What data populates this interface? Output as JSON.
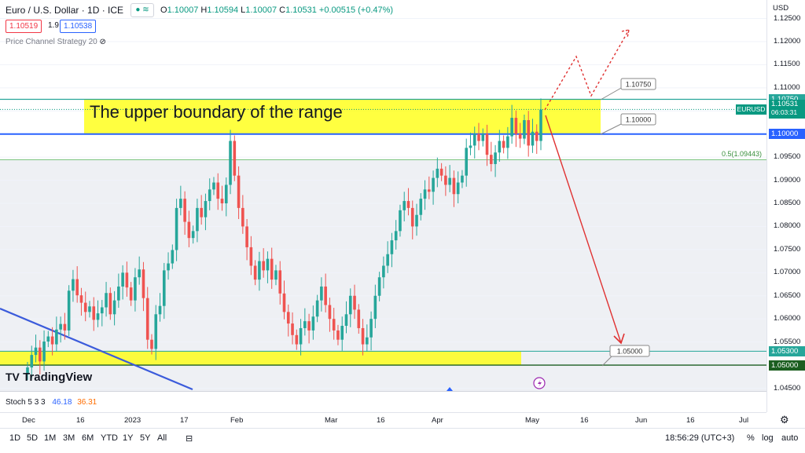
{
  "header": {
    "symbol": "Euro / U.S. Dollar · 1D · ICE",
    "open_label": "O",
    "open": "1.10007",
    "high_label": "H",
    "high": "1.10594",
    "low_label": "L",
    "low": "1.10007",
    "close_label": "C",
    "close": "1.10531",
    "change": "+0.00515 (+0.47%)",
    "bid": "1.10519",
    "spread": "1.9",
    "ask": "1.10538",
    "strategy": "Price Channel Strategy 20"
  },
  "price_axis": {
    "currency": "USD",
    "ticks": [
      "1.12500",
      "1.12000",
      "1.11500",
      "1.11000",
      "1.10500",
      "1.10000",
      "1.09500",
      "1.09000",
      "1.08500",
      "1.08000",
      "1.07500",
      "1.07000",
      "1.06500",
      "1.06000",
      "1.05500",
      "1.05000",
      "1.04500"
    ],
    "labels": {
      "upper": "1.10750",
      "symbol": "EURUSD",
      "last": "1.10531",
      "countdown": "06:03:31",
      "boundary": "1.10000",
      "lower_top": "1.05300",
      "lower": "1.05000"
    }
  },
  "annotations": {
    "range_text": "The upper boundary of the range",
    "callout_upper": "1.10750",
    "callout_boundary": "1.10000",
    "callout_lower": "1.05000",
    "fib": "0.5(1.09443)"
  },
  "stoch": {
    "label": "Stoch 5 3 3",
    "k": "46.18",
    "d": "36.31"
  },
  "time_axis": [
    "Dec",
    "16",
    "2023",
    "17",
    "Feb",
    "Mar",
    "16",
    "Apr",
    "May",
    "16",
    "Jun",
    "16",
    "Jul"
  ],
  "toolbar": {
    "ranges": [
      "1D",
      "5D",
      "1M",
      "3M",
      "6M",
      "YTD",
      "1Y",
      "5Y",
      "All"
    ],
    "clock": "18:56:29 (UTC+3)",
    "percent": "%",
    "log": "log",
    "auto": "auto"
  },
  "brand": "TradingView",
  "colors": {
    "up": "#26a69a",
    "down": "#ef5350",
    "zone": "#ffff00",
    "level": "#2962ff"
  },
  "chart_data": {
    "type": "candlestick",
    "title": "Euro / U.S. Dollar · 1D · ICE",
    "ylim": [
      1.043,
      1.128
    ],
    "x_axis": [
      "Dec",
      "16",
      "2023",
      "17",
      "Feb",
      "Mar",
      "16",
      "Apr",
      "May",
      "16",
      "Jun",
      "16",
      "Jul"
    ],
    "levels": {
      "range_top": 1.1075,
      "range_bottom": 1.1,
      "fib_0_5": 1.09443,
      "support_top": 1.053,
      "support_bottom": 1.05
    },
    "closes": [
      1.0495,
      1.0522,
      1.0538,
      1.0508,
      1.0551,
      1.0562,
      1.0545,
      1.0577,
      1.0589,
      1.0575,
      1.0661,
      1.0686,
      1.0651,
      1.0635,
      1.0615,
      1.0627,
      1.0598,
      1.0612,
      1.0625,
      1.0656,
      1.061,
      1.064,
      1.067,
      1.07,
      1.0668,
      1.064,
      1.069,
      1.0707,
      1.0645,
      1.0555,
      1.0535,
      1.061,
      1.0628,
      1.0705,
      1.072,
      1.0749,
      1.084,
      1.086,
      1.081,
      1.0775,
      1.079,
      1.084,
      1.082,
      1.0855,
      1.088,
      1.0895,
      1.086,
      1.085,
      1.089,
      1.0985,
      1.091,
      1.084,
      1.08,
      1.0755,
      1.0715,
      1.0685,
      1.0725,
      1.0705,
      1.073,
      1.0685,
      1.0705,
      1.0655,
      1.0615,
      1.059,
      1.0565,
      1.0545,
      1.058,
      1.0595,
      1.0575,
      1.0605,
      1.064,
      1.067,
      1.063,
      1.06,
      1.0575,
      1.0555,
      1.0585,
      1.061,
      1.065,
      1.062,
      1.058,
      1.0545,
      1.056,
      1.06,
      1.065,
      1.069,
      1.0715,
      1.074,
      1.077,
      1.079,
      1.0835,
      1.0855,
      1.084,
      1.08,
      1.0825,
      1.086,
      1.088,
      1.0875,
      1.0905,
      1.0925,
      1.091,
      1.089,
      1.0905,
      1.087,
      1.0895,
      1.091,
      1.097,
      1.0975,
      1.1,
      1.0985,
      1.1,
      1.0955,
      1.0935,
      1.096,
      1.0985,
      1.097,
      1.0995,
      1.1035,
      1.1,
      1.099,
      1.103,
      1.0975,
      1.1005,
      1.0985,
      1.1053
    ]
  }
}
